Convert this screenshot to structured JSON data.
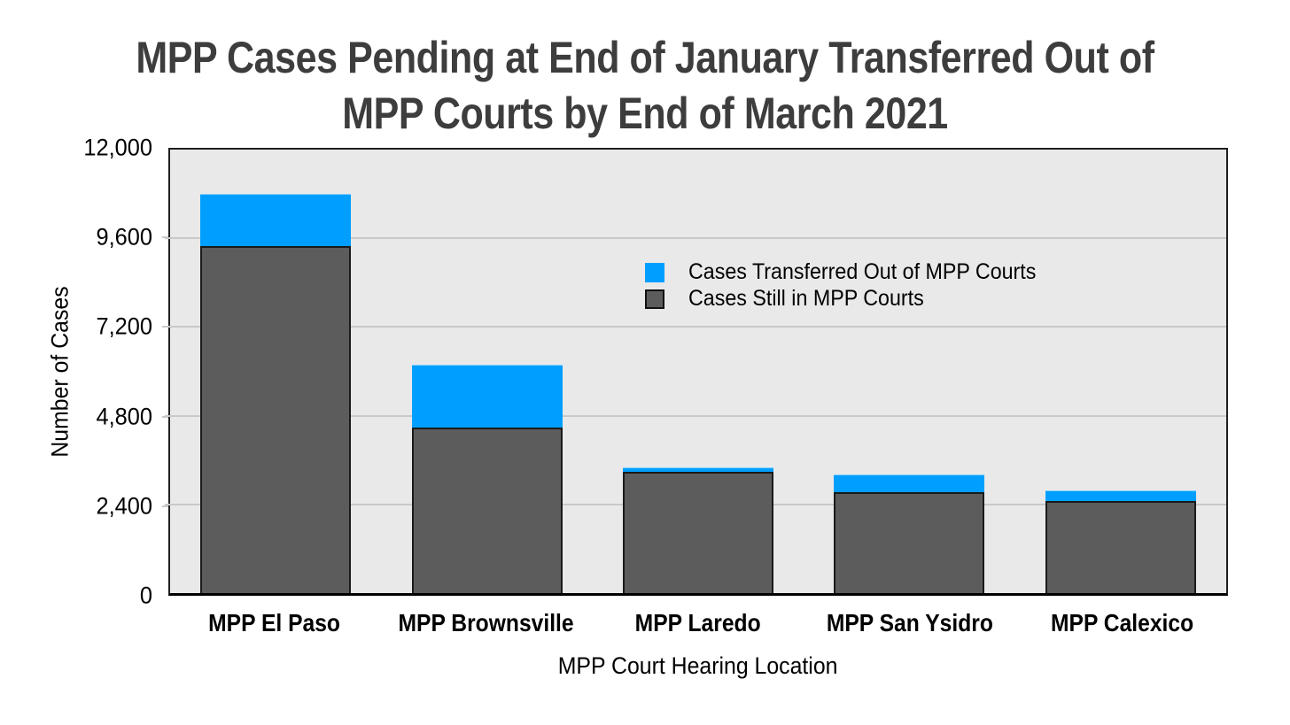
{
  "header": {
    "title_line1": "MPP Cases Pending at End of January Transferred Out of",
    "title_line2": "MPP Courts by End of March 2021"
  },
  "chart_data": {
    "type": "bar",
    "stacked": true,
    "title": "MPP Cases Pending at End of January Transferred Out of MPP Courts by End of March 2021",
    "xlabel": "MPP Court Hearing Location",
    "ylabel": "Number of Cases",
    "categories": [
      "MPP El Paso",
      "MPP Brownsville",
      "MPP Laredo",
      "MPP San Ysidro",
      "MPP Calexico"
    ],
    "series": [
      {
        "name": "Cases Still in MPP Courts",
        "color": "#5c5c5c",
        "values": [
          9400,
          4470,
          3280,
          2730,
          2500
        ]
      },
      {
        "name": "Cases Transferred Out of MPP Courts",
        "color": "#009fff",
        "values": [
          1400,
          1720,
          130,
          470,
          290
        ]
      }
    ],
    "stack_totals": [
      10800,
      6190,
      3410,
      3200,
      2790
    ],
    "ylim": [
      0,
      12000
    ],
    "yticks": [
      0,
      2400,
      4800,
      7200,
      9600,
      12000
    ],
    "ytick_labels": [
      "0",
      "2,400",
      "4,800",
      "7,200",
      "9,600",
      "12,000"
    ],
    "grid": true,
    "legend_position": "inside upper middle",
    "legend_order": [
      "Cases Transferred Out of MPP Courts",
      "Cases Still in MPP Courts"
    ],
    "colors": {
      "plot_background": "#e9e9e9",
      "gridline": "#c9c9c9",
      "axis_border": "#202020",
      "title_text": "#3d3d3d",
      "label_text": "#000000"
    }
  }
}
